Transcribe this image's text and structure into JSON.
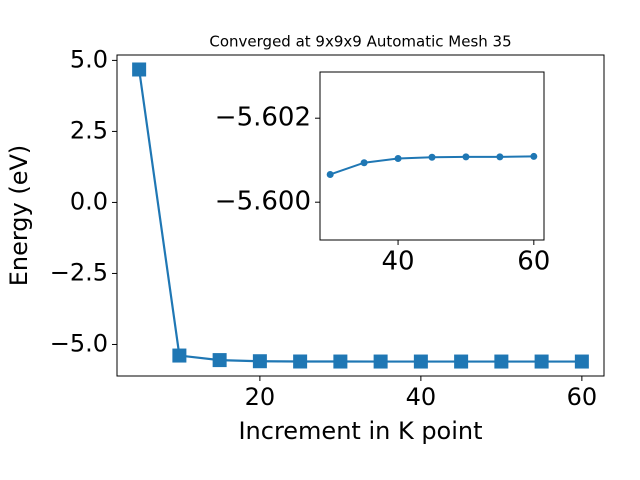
{
  "chart_data": [
    {
      "type": "line",
      "title": "Converged at 9x9x9 Automatic Mesh 35",
      "x_label": "Increment in K point",
      "y_label": "Energy (eV)",
      "x": [
        5,
        10,
        15,
        20,
        25,
        30,
        35,
        40,
        45,
        50,
        55,
        60
      ],
      "series": [
        {
          "name": "Energy",
          "color": "#1f77b4",
          "marker": "square",
          "values": [
            4.68,
            -5.39,
            -5.55,
            -5.59,
            -5.5995,
            -5.60066,
            -5.60094,
            -5.60104,
            -5.60107,
            -5.60108,
            -5.60108,
            -5.60109
          ]
        }
      ],
      "xlim": [
        2.25,
        62.75
      ],
      "ylim": [
        -6.11,
        5.19
      ],
      "xticks": [
        20,
        40,
        60
      ],
      "yticks": [
        {
          "value": -5.0,
          "label": "−5.0"
        },
        {
          "value": -2.5,
          "label": "−2.5"
        },
        {
          "value": 0,
          "label": "0.0"
        },
        {
          "value": 2.5,
          "label": "2.5"
        },
        {
          "value": 5.0,
          "label": "5.0"
        }
      ]
    },
    {
      "type": "line",
      "x": [
        30,
        35,
        40,
        45,
        50,
        55,
        60
      ],
      "series": [
        {
          "name": "Energy",
          "color": "#1f77b4",
          "marker": "circle",
          "values": [
            -5.60066,
            -5.60094,
            -5.60104,
            -5.60107,
            -5.60108,
            -5.60108,
            -5.60109
          ]
        }
      ],
      "xlim": [
        28.5,
        61.5
      ],
      "ylim": [
        -5.5991,
        -5.6031
      ],
      "xticks": [
        40,
        60
      ],
      "yticks": [
        {
          "value": -5.6,
          "label": "−5.600"
        },
        {
          "value": -5.602,
          "label": "−5.602"
        }
      ]
    }
  ]
}
